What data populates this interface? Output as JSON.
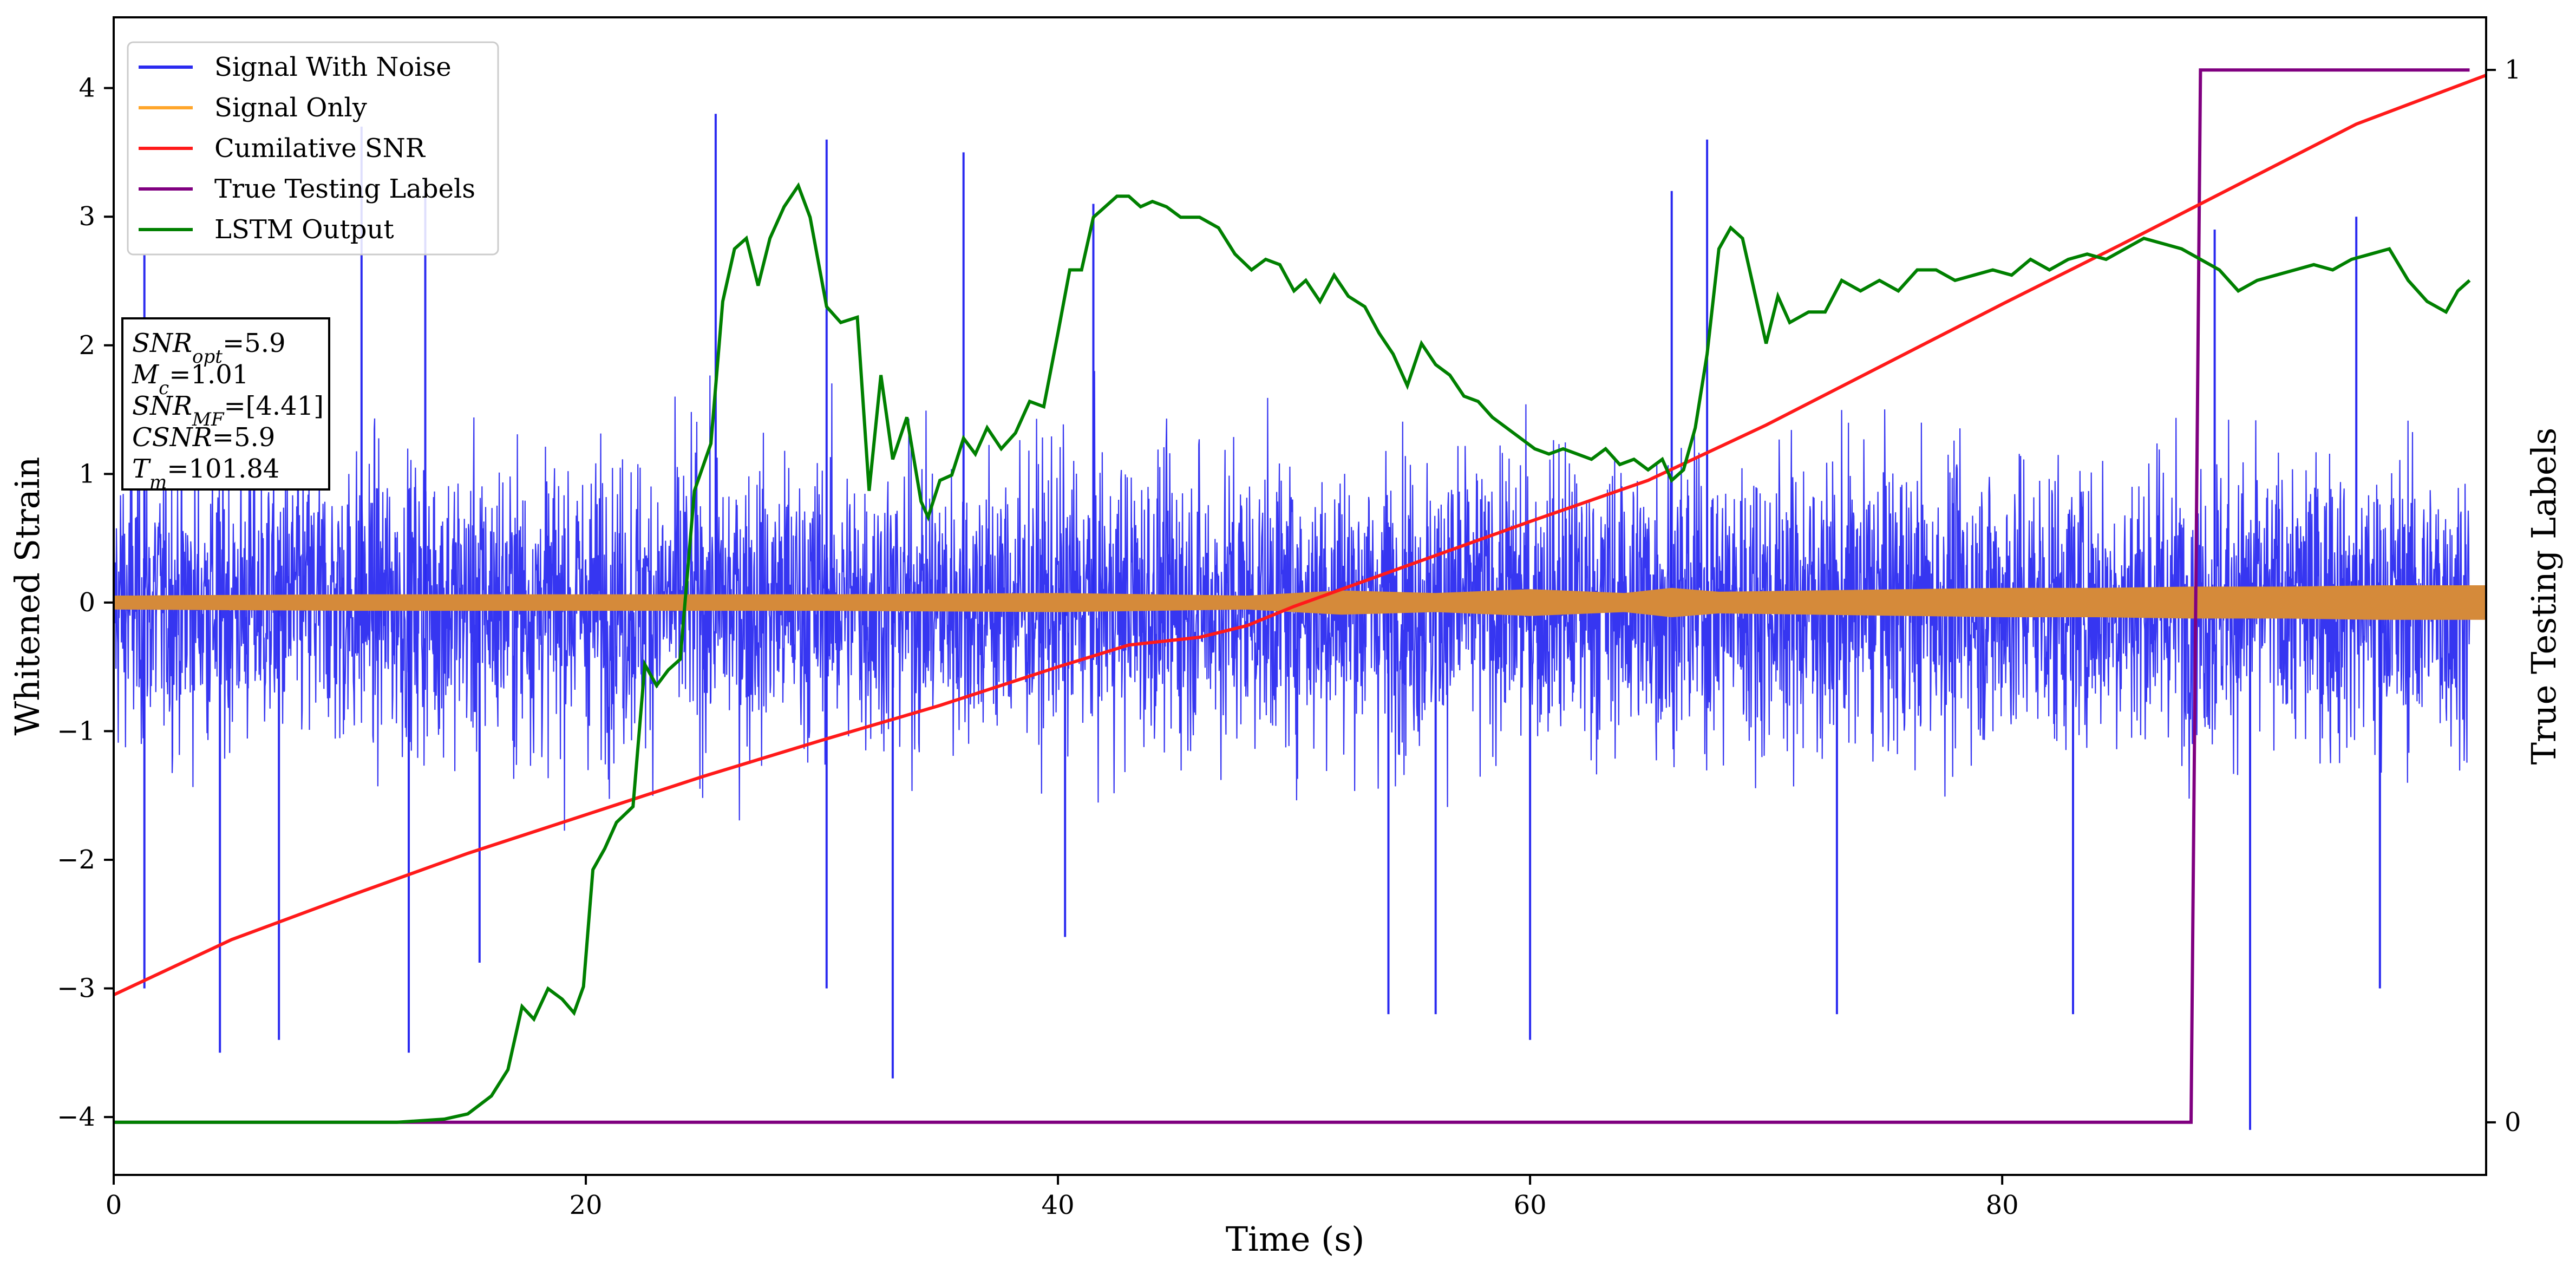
{
  "chart_data": {
    "type": "line",
    "xlabel": "Time (s)",
    "ylabel": "Whitened Strain",
    "y2label": "True Testing Labels",
    "xlim": [
      0,
      100.5
    ],
    "ylim": [
      -4.45,
      4.55
    ],
    "y2lim": [
      -0.05,
      1.05
    ],
    "x_ticks": [
      0,
      20,
      40,
      60,
      80
    ],
    "y_ticks": [
      -4,
      -3,
      -2,
      -1,
      0,
      1,
      2,
      3,
      4
    ],
    "y2_ticks": [
      0,
      1
    ],
    "legend_position": "top-left",
    "grid": false,
    "colors": {
      "signal_with_noise": "#2b2bf0",
      "signal_only": "#ffa62b",
      "signal_only_overlap": "#d58a3a",
      "cumulative_snr": "#ff1a1a",
      "true_labels": "#800080",
      "lstm": "#008000"
    },
    "series": [
      {
        "name": "Signal With Noise",
        "axis": "left",
        "noise_amplitude_typical": [
          -2.3,
          2.3
        ],
        "spike_points": [
          [
            1.3,
            -3.0
          ],
          [
            4.5,
            -3.5
          ],
          [
            7.0,
            -3.4
          ],
          [
            12.5,
            -3.5
          ],
          [
            15.5,
            -2.8
          ],
          [
            30.2,
            -3.0
          ],
          [
            33.0,
            -3.7
          ],
          [
            40.3,
            -2.6
          ],
          [
            54.0,
            -3.2
          ],
          [
            56.0,
            -3.2
          ],
          [
            60.0,
            -3.4
          ],
          [
            73.0,
            -3.2
          ],
          [
            83.0,
            -3.2
          ],
          [
            90.5,
            -4.1
          ],
          [
            96.0,
            -3.0
          ],
          [
            1.3,
            2.7
          ],
          [
            10.5,
            3.7
          ],
          [
            13.2,
            3.3
          ],
          [
            25.5,
            3.8
          ],
          [
            30.2,
            3.6
          ],
          [
            36.0,
            3.5
          ],
          [
            41.5,
            3.1
          ],
          [
            66.0,
            3.2
          ],
          [
            67.5,
            3.6
          ],
          [
            89.0,
            2.9
          ],
          [
            95.0,
            3.0
          ]
        ]
      },
      {
        "name": "Signal Only",
        "axis": "left",
        "envelope_x": [
          0,
          10,
          20,
          30,
          40,
          48,
          52,
          56,
          60,
          64,
          66,
          68,
          72,
          76,
          80,
          84,
          88,
          92,
          96,
          100.5
        ],
        "envelope_y": [
          0.05,
          0.06,
          0.06,
          0.06,
          0.07,
          0.05,
          0.09,
          0.07,
          0.1,
          0.07,
          0.11,
          0.08,
          0.09,
          0.1,
          0.11,
          0.11,
          0.12,
          0.12,
          0.13,
          0.13
        ]
      },
      {
        "name": "Cumilative SNR",
        "axis": "left",
        "x": [
          0,
          5,
          10,
          15,
          20,
          25,
          30,
          35,
          40,
          43,
          46,
          48,
          50,
          55,
          60,
          65,
          70,
          75,
          80,
          85,
          90,
          95,
          100.5
        ],
        "y": [
          -3.05,
          -2.62,
          -2.28,
          -1.95,
          -1.65,
          -1.35,
          -1.07,
          -0.8,
          -0.5,
          -0.33,
          -0.27,
          -0.18,
          -0.03,
          0.3,
          0.63,
          0.95,
          1.38,
          1.85,
          2.32,
          2.78,
          3.25,
          3.72,
          4.1
        ]
      },
      {
        "name": "True Testing Labels",
        "axis": "right",
        "x": [
          0,
          88.0,
          88.4,
          99.8
        ],
        "y": [
          0,
          0,
          1,
          1
        ]
      },
      {
        "name": "LSTM Output",
        "axis": "right",
        "x": [
          0,
          12,
          14,
          15,
          16,
          16.7,
          17.3,
          17.8,
          18.4,
          19.0,
          19.5,
          19.9,
          20.3,
          20.8,
          21.3,
          22.0,
          22.5,
          23.0,
          23.5,
          24.0,
          24.6,
          25.3,
          25.8,
          26.3,
          26.8,
          27.3,
          27.8,
          28.4,
          29.0,
          29.5,
          30.2,
          30.8,
          31.5,
          32.0,
          32.5,
          33.0,
          33.6,
          34.2,
          34.5,
          35.0,
          35.5,
          36.0,
          36.5,
          37.0,
          37.6,
          38.2,
          38.8,
          39.4,
          40.0,
          40.5,
          41.0,
          41.5,
          42.0,
          42.5,
          43.0,
          43.5,
          44.0,
          44.6,
          45.2,
          46.0,
          46.8,
          47.5,
          48.2,
          48.8,
          49.4,
          50.0,
          50.5,
          51.1,
          51.7,
          52.3,
          53.0,
          53.6,
          54.2,
          54.8,
          55.4,
          56.0,
          56.6,
          57.2,
          57.8,
          58.4,
          59.0,
          59.6,
          60.2,
          60.8,
          61.4,
          62.0,
          62.6,
          63.2,
          63.8,
          64.4,
          65.0,
          65.6,
          66.0,
          66.5,
          67.0,
          67.5,
          68.0,
          68.5,
          69.0,
          69.5,
          70.0,
          70.5,
          71.0,
          71.8,
          72.5,
          73.2,
          74.0,
          74.8,
          75.6,
          76.4,
          77.2,
          78.0,
          78.8,
          79.6,
          80.4,
          81.2,
          82.0,
          82.8,
          83.6,
          84.4,
          85.2,
          86.0,
          86.8,
          87.6,
          88.4,
          89.2,
          90.0,
          90.8,
          91.6,
          92.4,
          93.2,
          94.0,
          94.8,
          95.6,
          96.4,
          97.2,
          98.0,
          98.8,
          99.3,
          99.8
        ],
        "y": [
          0.0,
          0.0,
          0.003,
          0.008,
          0.025,
          0.05,
          0.11,
          0.098,
          0.127,
          0.117,
          0.104,
          0.129,
          0.24,
          0.26,
          0.285,
          0.3,
          0.435,
          0.415,
          0.43,
          0.44,
          0.6,
          0.645,
          0.78,
          0.83,
          0.84,
          0.795,
          0.84,
          0.87,
          0.89,
          0.86,
          0.775,
          0.76,
          0.765,
          0.6,
          0.71,
          0.63,
          0.67,
          0.59,
          0.575,
          0.61,
          0.615,
          0.65,
          0.635,
          0.66,
          0.64,
          0.655,
          0.685,
          0.68,
          0.75,
          0.81,
          0.81,
          0.86,
          0.87,
          0.88,
          0.88,
          0.87,
          0.875,
          0.87,
          0.86,
          0.86,
          0.85,
          0.825,
          0.81,
          0.82,
          0.815,
          0.79,
          0.8,
          0.78,
          0.805,
          0.785,
          0.775,
          0.75,
          0.73,
          0.7,
          0.74,
          0.72,
          0.71,
          0.69,
          0.685,
          0.67,
          0.66,
          0.65,
          0.64,
          0.635,
          0.64,
          0.635,
          0.63,
          0.64,
          0.625,
          0.63,
          0.62,
          0.63,
          0.61,
          0.62,
          0.66,
          0.73,
          0.83,
          0.85,
          0.84,
          0.79,
          0.74,
          0.785,
          0.76,
          0.77,
          0.77,
          0.8,
          0.79,
          0.8,
          0.79,
          0.81,
          0.81,
          0.8,
          0.805,
          0.81,
          0.805,
          0.82,
          0.81,
          0.82,
          0.825,
          0.82,
          0.83,
          0.84,
          0.835,
          0.83,
          0.82,
          0.81,
          0.79,
          0.8,
          0.805,
          0.81,
          0.815,
          0.81,
          0.82,
          0.825,
          0.83,
          0.8,
          0.78,
          0.77,
          0.79,
          0.8
        ]
      }
    ],
    "annotation": {
      "lines": [
        {
          "var": "SNR",
          "sub": "opt",
          "val": "=5.9"
        },
        {
          "var": "M",
          "sub": "c",
          "val": "=1.01"
        },
        {
          "var": "SNR",
          "sub": "MF",
          "val": "=[4.41]"
        },
        {
          "var": "CSNR",
          "sub": "",
          "val": "=5.9"
        },
        {
          "var": "T",
          "sub": "m",
          "val": "=101.84"
        }
      ]
    }
  }
}
